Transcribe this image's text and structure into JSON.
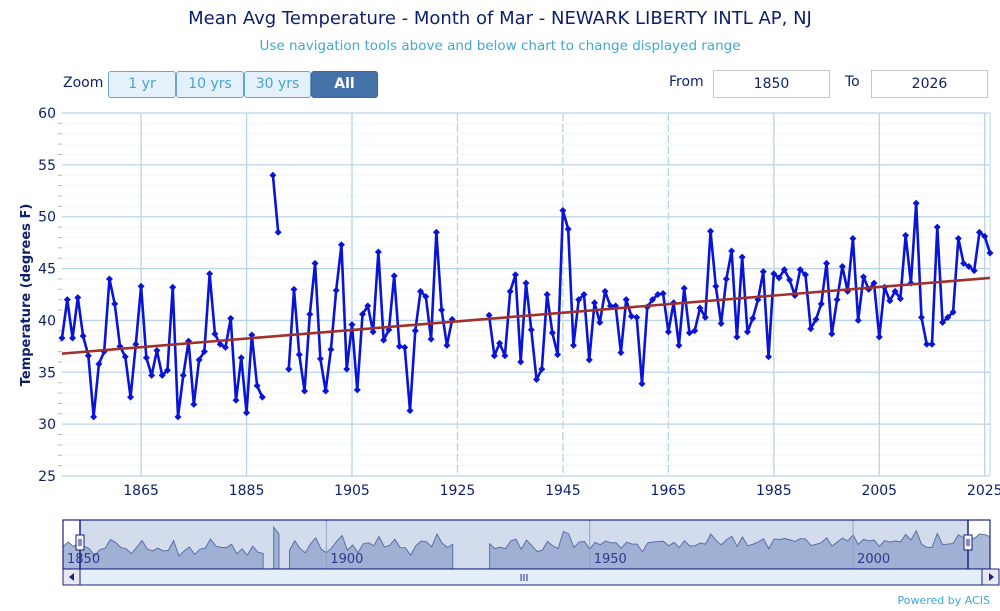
{
  "header": {
    "title": "Mean Avg Temperature - Month of Mar - NEWARK LIBERTY INTL AP, NJ",
    "subtitle": "Use navigation tools above and below chart to change displayed range"
  },
  "zoom": {
    "label": "Zoom",
    "buttons": [
      "1 yr",
      "10 yrs",
      "30 yrs",
      "All"
    ],
    "active": "All"
  },
  "range": {
    "from_label": "From",
    "from_value": "1850",
    "to_label": "To",
    "to_value": "2026"
  },
  "footer": {
    "powered_by": "Powered by ACIS"
  },
  "colors": {
    "series": "#0a14d6",
    "trend": "#a0302a",
    "grid": "#b8d4e8",
    "axis_text": "#0d1f6b"
  },
  "chart_data": {
    "type": "line",
    "title": "Mean Avg Temperature - Month of Mar - NEWARK LIBERTY INTL AP, NJ",
    "xlabel": "",
    "ylabel": "Temperature (degrees F)",
    "ylim": [
      25,
      60
    ],
    "xlim": [
      1850,
      2026
    ],
    "yticks": [
      25,
      30,
      35,
      40,
      45,
      50,
      55,
      60
    ],
    "xticks": [
      1865,
      1885,
      1905,
      1925,
      1945,
      1965,
      1985,
      2005,
      2025
    ],
    "grid": true,
    "x_start": 1850,
    "series": [
      {
        "name": "Mean Avg Temperature",
        "values": [
          38.3,
          42,
          38.3,
          42.2,
          38.5,
          36.6,
          30.7,
          35.8,
          37,
          44,
          41.6,
          37.5,
          36.5,
          32.6,
          37.7,
          43.3,
          36.4,
          34.7,
          37.1,
          34.7,
          35.2,
          43.2,
          30.7,
          34.7,
          38,
          31.9,
          36.2,
          37,
          44.5,
          38.7,
          37.7,
          37.4,
          40.2,
          32.3,
          36.4,
          31.1,
          38.6,
          33.7,
          32.6,
          null,
          54,
          48.5,
          null,
          35.3,
          43.0,
          36.7,
          33.2,
          40.6,
          45.5,
          36.3,
          33.2,
          37.2,
          42.9,
          47.3,
          35.3,
          39.6,
          33.3,
          40.6,
          41.4,
          38.9,
          46.6,
          38.1,
          39.1,
          44.3,
          37.5,
          37.4,
          31.3,
          39,
          42.8,
          42.3,
          38.2,
          48.5,
          41,
          37.6,
          40.1,
          null,
          null,
          null,
          null,
          null,
          null,
          40.5,
          36.6,
          37.8,
          36.6,
          42.8,
          44.4,
          36.0,
          43.6,
          39.1,
          34.3,
          35.3,
          42.5,
          38.8,
          36.7,
          50.6,
          48.8,
          37.6,
          42,
          42.5,
          36.2,
          41.7,
          39.8,
          42.8,
          41.4,
          41.4,
          36.9,
          42,
          40.4,
          40.3,
          33.9,
          41.3,
          42,
          42.5,
          42.6,
          38.9,
          41.7,
          37.6,
          43.1,
          38.8,
          39,
          41.2,
          40.3,
          48.6,
          43.3,
          39.7,
          44,
          46.7,
          38.4,
          46.1,
          38.9,
          40.2,
          42,
          44.7,
          36.5,
          44.5,
          44.1,
          44.9,
          43.9,
          42.4,
          44.9,
          44.4,
          39.2,
          40.1,
          41.6,
          45.5,
          38.7,
          42,
          45.2,
          42.8,
          47.9,
          40,
          44.2,
          43,
          43.6,
          38.4,
          43.2,
          41.9,
          42.8,
          42.1,
          48.2,
          43.6,
          51.3,
          40.3,
          37.7,
          37.7,
          49,
          39.8,
          40.3,
          40.8,
          47.9,
          45.5,
          45.2,
          44.8,
          48.5,
          48.1,
          46.5
        ]
      },
      {
        "name": "Trend",
        "type": "linear",
        "start": [
          1850,
          36.8
        ],
        "end": [
          2026,
          44.1
        ]
      }
    ],
    "navigator": {
      "xticks": [
        1850,
        1900,
        1950,
        2000
      ],
      "scroll_thumb": "III"
    }
  }
}
